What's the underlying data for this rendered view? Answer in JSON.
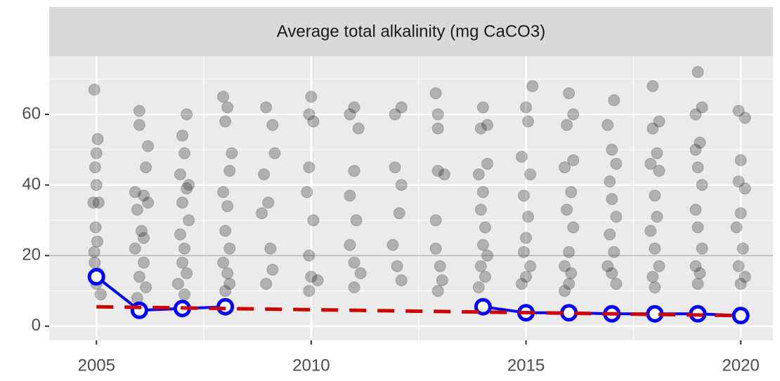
{
  "chart_data": {
    "type": "scatter",
    "title": "Average total alkalinity (mg CaCO3)",
    "xlim": [
      2003.9,
      2020.75
    ],
    "ylim": [
      -4,
      76.5
    ],
    "xticks": [
      2005,
      2010,
      2015,
      2020
    ],
    "yticks": [
      0,
      20,
      40,
      60
    ],
    "x_minor_grid": [
      2007.5,
      2012.5,
      2017.5
    ],
    "y_minor_grid": [
      10,
      30,
      50,
      70
    ],
    "grid": true,
    "hline": 20,
    "series": [
      {
        "type": "scatter",
        "color": "#000000",
        "x": [
          2004.95,
          2005.0,
          2004.97,
          2005.03,
          2004.93,
          2005.05,
          2005.0,
          2004.98,
          2005.02,
          2004.96,
          2005.04,
          2005.0,
          2005.1,
          2004.95,
          2005.9,
          2006.0,
          2006.0,
          2006.2,
          2006.15,
          2006.1,
          2005.95,
          2006.05,
          2005.9,
          2006.1,
          2006.0,
          2006.15,
          2005.95,
          2006.05,
          2006.2,
          2006.1,
          2007.1,
          2007.0,
          2007.05,
          2006.95,
          2007.1,
          2007.0,
          2007.15,
          2006.95,
          2007.05,
          2007.0,
          2007.1,
          2006.9,
          2007.05,
          2007.15,
          2007.95,
          2008.05,
          2008.0,
          2008.15,
          2008.1,
          2007.95,
          2008.05,
          2008.0,
          2008.1,
          2007.95,
          2008.05,
          2008.1,
          2008.0,
          2008.95,
          2009.1,
          2009.15,
          2008.9,
          2009.0,
          2008.85,
          2009.05,
          2009.1,
          2008.95,
          2009.95,
          2010.0,
          2010.05,
          2009.95,
          2009.9,
          2010.05,
          2009.95,
          2010.0,
          2010.15,
          2009.95,
          2010.9,
          2011.0,
          2011.1,
          2011.0,
          2010.9,
          2011.05,
          2010.9,
          2011.0,
          2011.15,
          2011.0,
          2011.95,
          2012.1,
          2011.95,
          2012.1,
          2012.05,
          2011.9,
          2012.0,
          2012.1,
          2012.9,
          2012.95,
          2012.95,
          2012.95,
          2013.1,
          2012.9,
          2012.9,
          2013.0,
          2013.05,
          2012.95,
          2014.0,
          2013.95,
          2014.1,
          2014.1,
          2013.9,
          2014.0,
          2013.95,
          2014.05,
          2014.0,
          2014.1,
          2013.95,
          2014.05,
          2013.9,
          2015.0,
          2015.15,
          2015.05,
          2014.9,
          2015.1,
          2014.95,
          2015.05,
          2015.0,
          2014.95,
          2015.1,
          2015.0,
          2014.9,
          2016.0,
          2016.1,
          2015.95,
          2016.1,
          2015.9,
          2016.05,
          2015.95,
          2016.1,
          2016.0,
          2015.9,
          2016.05,
          2016.0,
          2015.9,
          2017.05,
          2016.9,
          2017.0,
          2017.1,
          2016.95,
          2017.0,
          2017.1,
          2016.95,
          2017.05,
          2016.9,
          2017.0,
          2017.1,
          2017.95,
          2018.1,
          2017.95,
          2018.05,
          2017.9,
          2018.1,
          2018.0,
          2018.05,
          2017.9,
          2018.0,
          2018.1,
          2017.95,
          2018.0,
          2019.0,
          2019.1,
          2018.95,
          2019.05,
          2018.95,
          2019.0,
          2019.1,
          2018.95,
          2019.0,
          2019.1,
          2018.95,
          2019.05,
          2019.0,
          2019.95,
          2020.1,
          2020.0,
          2019.95,
          2020.1,
          2020.0,
          2019.9,
          2020.05,
          2019.95,
          2020.1,
          2020.0
        ],
        "values": [
          67,
          49,
          45,
          53,
          35,
          35,
          40,
          28,
          24,
          18,
          15,
          12,
          9,
          21,
          38,
          61,
          57,
          51,
          45,
          37,
          33,
          27,
          22,
          18,
          14,
          11,
          8,
          5,
          35,
          25,
          60,
          54,
          49,
          43,
          39,
          35,
          30,
          26,
          22,
          18,
          15,
          12,
          9,
          40,
          65,
          62,
          58,
          49,
          44,
          38,
          34,
          27,
          22,
          18,
          15,
          12,
          10,
          62,
          57,
          49,
          43,
          35,
          32,
          22,
          16,
          12,
          60,
          65,
          58,
          45,
          38,
          30,
          20,
          14,
          13,
          10,
          60,
          62,
          56,
          44,
          37,
          30,
          23,
          18,
          15,
          11,
          60,
          62,
          45,
          40,
          32,
          23,
          17,
          13,
          66,
          60,
          56,
          44,
          43,
          30,
          22,
          17,
          13,
          10,
          62,
          56,
          57,
          46,
          43,
          38,
          33,
          28,
          23,
          20,
          17,
          14,
          11,
          62,
          68,
          58,
          48,
          43,
          37,
          31,
          25,
          21,
          17,
          14,
          12,
          66,
          60,
          57,
          47,
          45,
          38,
          33,
          28,
          21,
          17,
          15,
          12,
          10,
          64,
          57,
          50,
          46,
          41,
          36,
          31,
          26,
          21,
          17,
          15,
          12,
          68,
          58,
          56,
          49,
          46,
          44,
          37,
          31,
          27,
          22,
          17,
          14,
          11,
          72,
          62,
          60,
          52,
          50,
          45,
          40,
          33,
          28,
          22,
          17,
          15,
          12,
          61,
          59,
          47,
          41,
          39,
          32,
          28,
          22,
          17,
          14,
          12
        ]
      },
      {
        "type": "line",
        "color": "#0000ff",
        "markers": true,
        "x": [
          2005,
          2006,
          2007,
          2008,
          2009,
          2010,
          2011,
          2012,
          2013,
          2014,
          2015,
          2016,
          2017,
          2018,
          2019,
          2020
        ],
        "values": [
          14,
          4.5,
          5,
          5.5,
          null,
          null,
          null,
          null,
          null,
          5.5,
          3.8,
          3.8,
          3.5,
          3.5,
          3.5,
          3
        ]
      },
      {
        "type": "line",
        "color": "#cc0000",
        "linestyle": "dashed",
        "x": [
          2005,
          2020
        ],
        "values": [
          5.5,
          3
        ]
      }
    ]
  }
}
